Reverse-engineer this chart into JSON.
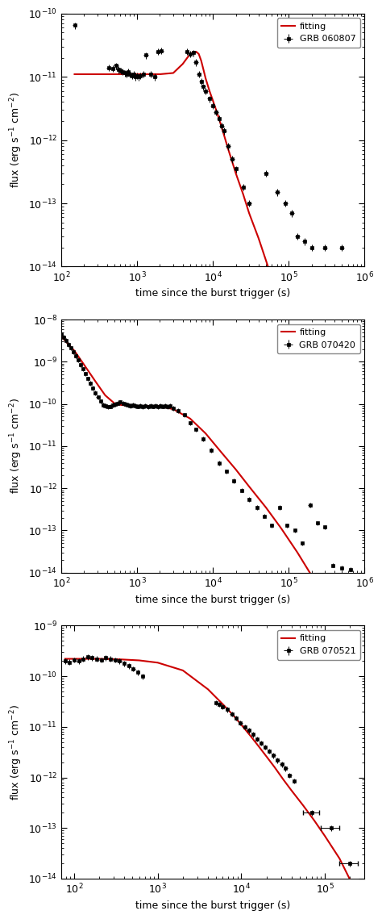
{
  "plots": [
    {
      "title": "GRB 060807",
      "xlim": [
        100.0,
        1000000.0
      ],
      "ylim": [
        1e-14,
        1e-10
      ],
      "xlabel": "time since the burst trigger (s)",
      "ylabel": "flux (erg s$^{-1}$ cm$^{-2}$)",
      "data_x": [
        150,
        420,
        480,
        530,
        570,
        610,
        650,
        690,
        730,
        770,
        810,
        860,
        900,
        950,
        1000,
        1050,
        1100,
        1200,
        1300,
        1500,
        1700,
        1900,
        2100,
        4500,
        5000,
        5500,
        6000,
        6500,
        7000,
        7500,
        8000,
        9000,
        10000,
        11000,
        12000,
        13000,
        14000,
        16000,
        18000,
        20000,
        25000,
        30000,
        50000,
        70000,
        90000,
        110000,
        130000,
        160000,
        200000,
        300000,
        500000
      ],
      "data_y": [
        6.5e-11,
        1.4e-11,
        1.35e-11,
        1.5e-11,
        1.3e-11,
        1.25e-11,
        1.2e-11,
        1.15e-11,
        1.1e-11,
        1.2e-11,
        1.1e-11,
        1.05e-11,
        1.1e-11,
        1e-11,
        1.05e-11,
        1e-11,
        1.05e-11,
        1.1e-11,
        2.2e-11,
        1.1e-11,
        1e-11,
        2.5e-11,
        2.6e-11,
        2.5e-11,
        2.3e-11,
        2.4e-11,
        1.7e-11,
        1.1e-11,
        8.5e-12,
        7e-12,
        6e-12,
        4.5e-12,
        3.5e-12,
        2.8e-12,
        2.2e-12,
        1.7e-12,
        1.4e-12,
        8e-13,
        5e-13,
        3.5e-13,
        1.8e-13,
        1e-13,
        3e-13,
        1.5e-13,
        1e-13,
        7e-14,
        3e-14,
        2.5e-14,
        2e-14,
        2e-14,
        2e-14
      ],
      "data_xerr_rel": 0.07,
      "data_yerr_rel": 0.12,
      "fit_x": [
        150,
        300,
        600,
        1200,
        2000,
        3000,
        4000,
        5000,
        5500,
        6000,
        6500,
        7000,
        7500,
        8000,
        9000,
        10000,
        11000,
        12000,
        13000,
        14000,
        16000,
        18000,
        20000,
        25000,
        30000,
        40000,
        60000,
        80000,
        100000,
        150000,
        200000,
        300000,
        500000,
        800000
      ],
      "fit_y": [
        1.1e-11,
        1.1e-11,
        1.1e-11,
        1.1e-11,
        1.1e-11,
        1.15e-11,
        1.6e-11,
        2.3e-11,
        2.45e-11,
        2.5e-11,
        2.3e-11,
        1.8e-11,
        1.3e-11,
        9.5e-12,
        6e-12,
        4.2e-12,
        3e-12,
        2.2e-12,
        1.6e-12,
        1.2e-12,
        7e-13,
        4.5e-13,
        3e-13,
        1.4e-13,
        7e-14,
        2.8e-14,
        6.5e-15,
        2e-15,
        8e-16,
        2e-16,
        8e-17,
        2e-17,
        3e-18,
        3e-19
      ]
    },
    {
      "title": "GRB 070420",
      "xlim": [
        100.0,
        1000000.0
      ],
      "ylim": [
        1e-14,
        1e-08
      ],
      "xlabel": "time since the burst trigger (s)",
      "ylabel": "flux (erg s$^{-1}$ cm$^{-2}$)",
      "data_x": [
        100,
        108,
        116,
        125,
        135,
        145,
        156,
        168,
        181,
        195,
        210,
        226,
        244,
        263,
        283,
        305,
        329,
        355,
        383,
        413,
        445,
        480,
        518,
        559,
        603,
        651,
        702,
        757,
        817,
        882,
        951,
        1026,
        1107,
        1195,
        1289,
        1391,
        1500,
        1618,
        1746,
        1884,
        2033,
        2192,
        2365,
        2552,
        2754,
        2972,
        3500,
        4200,
        5000,
        6000,
        7500,
        9500,
        12000,
        15000,
        19000,
        24000,
        30000,
        38000,
        48000,
        60000,
        76000,
        95000,
        120000,
        150000,
        190000,
        240000,
        300000,
        380000,
        500000,
        650000
      ],
      "data_y": [
        4.5e-09,
        3.8e-09,
        3.2e-09,
        2.6e-09,
        2.1e-09,
        1.75e-09,
        1.4e-09,
        1.1e-09,
        8.5e-10,
        6.8e-10,
        5.2e-10,
        4e-10,
        3.1e-10,
        2.4e-10,
        1.85e-10,
        1.45e-10,
        1.15e-10,
        9.5e-11,
        9e-11,
        8.5e-11,
        8.8e-11,
        9.5e-11,
        1e-10,
        1.05e-10,
        1.1e-10,
        1.05e-10,
        1e-10,
        9.5e-11,
        9e-11,
        9.5e-11,
        9e-11,
        8.8e-11,
        9e-11,
        8.5e-11,
        9e-11,
        8.5e-11,
        9e-11,
        8.8e-11,
        9.2e-11,
        8.5e-11,
        9e-11,
        8.8e-11,
        9e-11,
        8.5e-11,
        9e-11,
        8e-11,
        7e-11,
        5.5e-11,
        3.5e-11,
        2.5e-11,
        1.5e-11,
        8e-12,
        4e-12,
        2.5e-12,
        1.5e-12,
        9e-13,
        5.5e-13,
        3.5e-13,
        2.2e-13,
        1.3e-13,
        3.5e-13,
        1.3e-13,
        1e-13,
        5e-14,
        4e-13,
        1.5e-13,
        1.2e-13,
        1.5e-14,
        1.3e-14,
        1.2e-14
      ],
      "data_xerr_rel": 0.05,
      "data_yerr_rel": 0.12,
      "fit_x": [
        100,
        150,
        200,
        280,
        380,
        520,
        700,
        950,
        1300,
        2000,
        3000,
        5000,
        8000,
        13000,
        20000,
        30000,
        50000,
        80000,
        130000,
        200000,
        350000,
        600000
      ],
      "fit_y": [
        4e-09,
        1.8e-09,
        8.5e-10,
        3.5e-10,
        1.6e-10,
        9.8e-11,
        9.2e-11,
        9e-11,
        9e-11,
        8.8e-11,
        7.5e-11,
        4.5e-11,
        2e-11,
        7e-12,
        2.8e-12,
        1.1e-12,
        3.5e-13,
        1.1e-13,
        3e-14,
        8.5e-15,
        1.5e-15,
        3e-16
      ]
    },
    {
      "title": "GRB 070521",
      "xlim": [
        70.0,
        300000.0
      ],
      "ylim": [
        1e-14,
        1e-09
      ],
      "xlabel": "time since the burst trigger (s)",
      "ylabel": "flux (erg s$^{-1}$ cm$^{-2}$)",
      "data_x": [
        78,
        88,
        100,
        113,
        128,
        145,
        164,
        186,
        211,
        240,
        272,
        308,
        350,
        397,
        450,
        510,
        580,
        660,
        5000,
        5500,
        6000,
        6800,
        7700,
        8700,
        9800,
        11000,
        12300,
        13800,
        15500,
        17300,
        19400,
        21700,
        24300,
        27200,
        30500,
        34000,
        38000,
        43000,
        70000,
        120000,
        200000
      ],
      "data_y": [
        2e-10,
        1.9e-10,
        2.1e-10,
        2e-10,
        2.2e-10,
        2.4e-10,
        2.3e-10,
        2.2e-10,
        2.1e-10,
        2.3e-10,
        2.2e-10,
        2.1e-10,
        2e-10,
        1.8e-10,
        1.6e-10,
        1.4e-10,
        1.2e-10,
        1e-10,
        3e-11,
        2.8e-11,
        2.5e-11,
        2.2e-11,
        1.8e-11,
        1.5e-11,
        1.2e-11,
        1e-11,
        8.5e-12,
        7e-12,
        5.8e-12,
        4.8e-12,
        4e-12,
        3.3e-12,
        2.7e-12,
        2.2e-12,
        1.8e-12,
        1.5e-12,
        1.1e-12,
        8.5e-13,
        2e-13,
        1e-13,
        2e-14
      ],
      "data_xerr_rel": 0.05,
      "data_yerr_rel": 0.12,
      "special_xerr": [
        [
          70000,
          120000,
          200000
        ],
        [
          15000,
          30000,
          50000
        ],
        [
          15000,
          30000,
          50000
        ]
      ],
      "fit_x": [
        78,
        120,
        200,
        350,
        600,
        1000,
        2000,
        4000,
        6000,
        8000,
        10000,
        13000,
        16000,
        20000,
        25000,
        32000,
        40000,
        55000,
        75000,
        100000,
        150000,
        220000
      ],
      "fit_y": [
        2.2e-10,
        2.2e-10,
        2.2e-10,
        2.15e-10,
        2.05e-10,
        1.85e-10,
        1.3e-10,
        5.5e-11,
        2.8e-11,
        1.7e-11,
        1.1e-11,
        6.5e-12,
        4.2e-12,
        2.6e-12,
        1.6e-12,
        9e-13,
        5.5e-13,
        2.8e-13,
        1.4e-13,
        7e-14,
        2.5e-14,
        7e-15
      ]
    }
  ],
  "data_color": "#000000",
  "fit_color": "#cc0000",
  "marker": "s",
  "markersize": 3.5,
  "linewidth": 1.5,
  "background_color": "#ffffff"
}
